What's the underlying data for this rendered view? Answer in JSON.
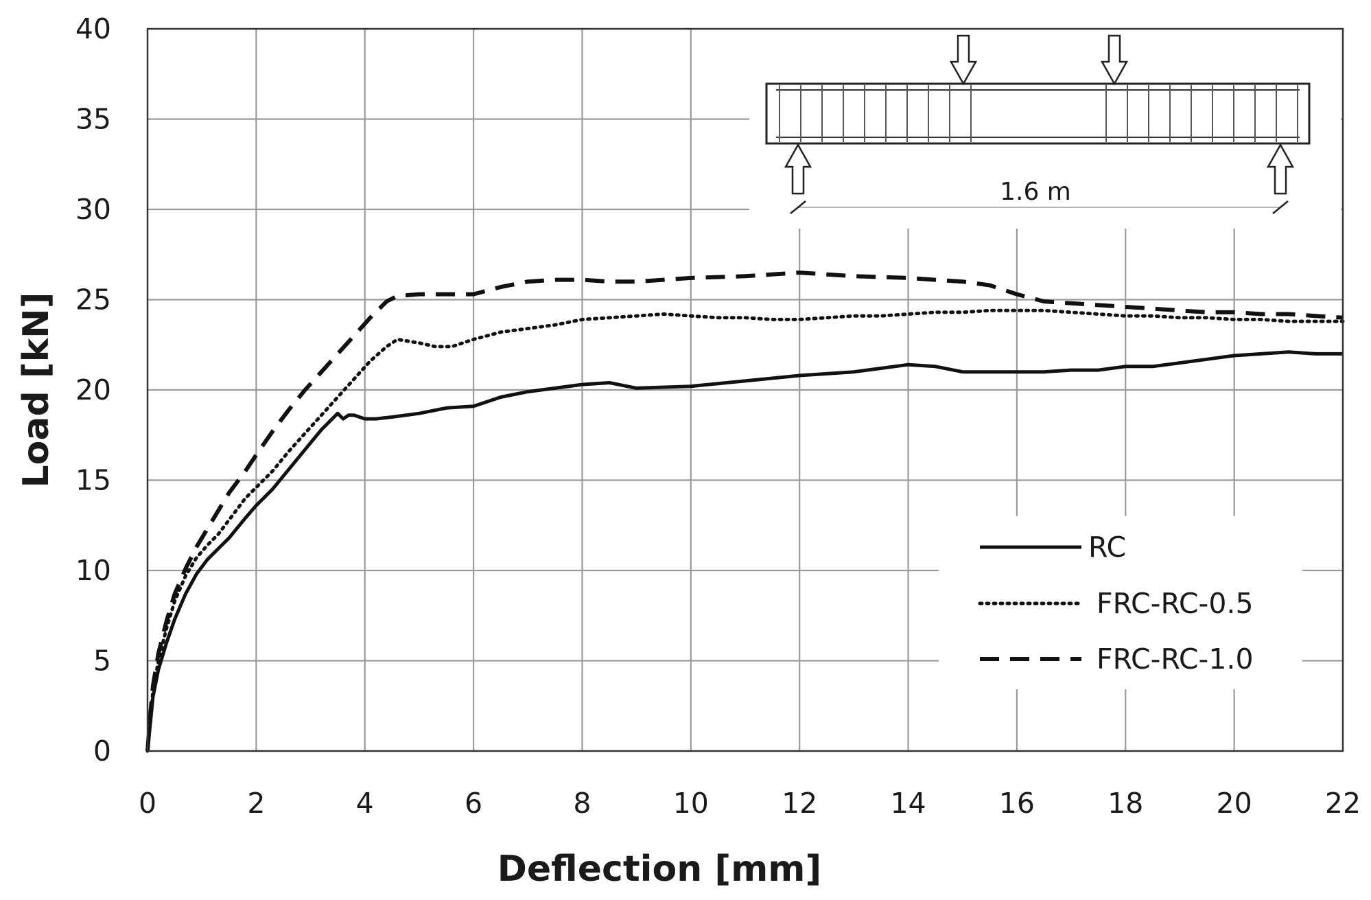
{
  "chart_data": {
    "type": "line",
    "title": "",
    "xlabel": "Deflection [mm]",
    "ylabel": "Load [kN]",
    "xlim": [
      0,
      22
    ],
    "ylim": [
      0,
      40
    ],
    "x_ticks": [
      0,
      2,
      4,
      6,
      8,
      10,
      12,
      14,
      16,
      18,
      20,
      22
    ],
    "y_ticks": [
      0,
      5,
      10,
      15,
      20,
      25,
      30,
      35,
      40
    ],
    "grid": true,
    "legend_position": "lower-right",
    "inset_annotation": "1.6 m",
    "colors": {
      "line": "#111111",
      "grid": "#9a9a9a",
      "frame": "#333333"
    },
    "series": [
      {
        "name": "RC",
        "style": "solid",
        "x": [
          0,
          0.05,
          0.1,
          0.2,
          0.35,
          0.5,
          0.7,
          0.9,
          1.1,
          1.3,
          1.5,
          1.8,
          2.0,
          2.3,
          2.6,
          2.9,
          3.2,
          3.5,
          3.6,
          3.7,
          3.8,
          4.0,
          4.2,
          4.5,
          5.0,
          5.5,
          6.0,
          6.5,
          7.0,
          7.5,
          8.0,
          8.5,
          9.0,
          10.0,
          11.0,
          12.0,
          13.0,
          14.0,
          14.5,
          15.0,
          15.5,
          16.0,
          16.5,
          17.0,
          17.5,
          18.0,
          18.5,
          19.0,
          19.5,
          20.0,
          20.5,
          21.0,
          21.5,
          22.0
        ],
        "values": [
          0,
          1.5,
          3.0,
          4.5,
          6.0,
          7.3,
          8.7,
          9.8,
          10.6,
          11.2,
          11.8,
          12.9,
          13.6,
          14.5,
          15.6,
          16.7,
          17.8,
          18.7,
          18.4,
          18.6,
          18.6,
          18.4,
          18.4,
          18.5,
          18.7,
          19.0,
          19.1,
          19.6,
          19.9,
          20.1,
          20.3,
          20.4,
          20.1,
          20.2,
          20.5,
          20.8,
          21.0,
          21.4,
          21.3,
          21.0,
          21.0,
          21.0,
          21.0,
          21.1,
          21.1,
          21.3,
          21.3,
          21.5,
          21.7,
          21.9,
          22.0,
          22.1,
          22.0,
          22.0
        ]
      },
      {
        "name": "FRC-RC-0.5",
        "style": "dotted",
        "x": [
          0,
          0.05,
          0.1,
          0.2,
          0.35,
          0.5,
          0.7,
          0.9,
          1.1,
          1.3,
          1.5,
          1.8,
          2.0,
          2.3,
          2.6,
          2.9,
          3.2,
          3.5,
          3.8,
          4.1,
          4.4,
          4.6,
          4.8,
          5.0,
          5.3,
          5.6,
          6.0,
          6.5,
          7.0,
          7.5,
          8.0,
          8.5,
          9.0,
          9.5,
          10.0,
          10.5,
          11.0,
          11.5,
          12.0,
          12.5,
          13.0,
          13.5,
          14.0,
          14.5,
          15.0,
          15.5,
          16.0,
          16.5,
          17.0,
          17.5,
          18.0,
          18.5,
          19.0,
          19.5,
          20.0,
          20.5,
          21.0,
          21.5,
          22.0
        ],
        "values": [
          0,
          1.8,
          3.3,
          5.0,
          6.8,
          8.3,
          9.7,
          10.7,
          11.4,
          12.0,
          12.8,
          14.0,
          14.6,
          15.5,
          16.6,
          17.6,
          18.6,
          19.6,
          20.6,
          21.6,
          22.4,
          22.8,
          22.7,
          22.6,
          22.4,
          22.4,
          22.8,
          23.2,
          23.4,
          23.6,
          23.9,
          24.0,
          24.1,
          24.2,
          24.1,
          24.0,
          24.0,
          23.9,
          23.9,
          24.0,
          24.1,
          24.1,
          24.2,
          24.3,
          24.3,
          24.4,
          24.4,
          24.4,
          24.3,
          24.2,
          24.1,
          24.1,
          24.0,
          24.0,
          23.9,
          23.9,
          23.8,
          23.8,
          23.8
        ]
      },
      {
        "name": "FRC-RC-1.0",
        "style": "dashed",
        "x": [
          0,
          0.05,
          0.1,
          0.2,
          0.35,
          0.5,
          0.7,
          0.9,
          1.1,
          1.3,
          1.5,
          1.8,
          2.0,
          2.3,
          2.6,
          2.9,
          3.2,
          3.5,
          3.8,
          4.1,
          4.4,
          4.6,
          5.0,
          5.5,
          6.0,
          6.5,
          7.0,
          7.5,
          8.0,
          8.5,
          9.0,
          9.5,
          10.0,
          11.0,
          12.0,
          12.5,
          13.0,
          14.0,
          14.5,
          15.0,
          15.5,
          16.0,
          16.5,
          17.0,
          17.5,
          18.0,
          18.5,
          19.0,
          19.5,
          20.0,
          20.5,
          21.0,
          21.5,
          22.0
        ],
        "values": [
          0,
          2.0,
          3.6,
          5.4,
          7.2,
          8.7,
          10.1,
          11.3,
          12.3,
          13.3,
          14.3,
          15.5,
          16.4,
          17.7,
          18.9,
          20.0,
          21.0,
          22.0,
          23.0,
          24.0,
          24.9,
          25.2,
          25.3,
          25.3,
          25.3,
          25.7,
          26.0,
          26.1,
          26.1,
          26.0,
          26.0,
          26.1,
          26.2,
          26.3,
          26.5,
          26.4,
          26.3,
          26.2,
          26.1,
          26.0,
          25.8,
          25.3,
          24.9,
          24.8,
          24.7,
          24.6,
          24.5,
          24.4,
          24.3,
          24.3,
          24.2,
          24.2,
          24.1,
          24.0
        ]
      }
    ]
  }
}
